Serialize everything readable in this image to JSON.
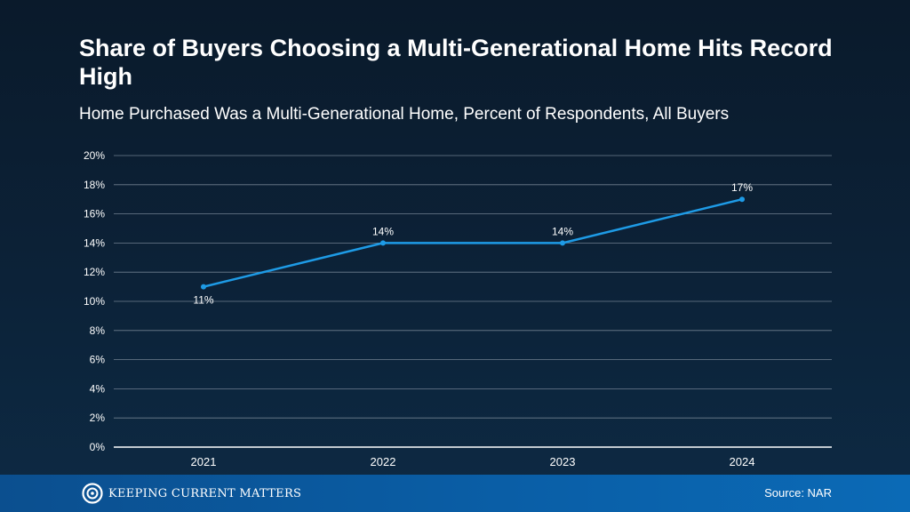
{
  "header": {
    "title": "Share of Buyers Choosing a Multi-Generational Home Hits Record High",
    "subtitle": "Home Purchased Was a Multi-Generational Home, Percent of Respondents, All Buyers"
  },
  "chart_data": {
    "type": "line",
    "title": "Share of Buyers Choosing a Multi-Generational Home Hits Record High",
    "subtitle": "Home Purchased Was a Multi-Generational Home, Percent of Respondents, All Buyers",
    "categories": [
      "2021",
      "2022",
      "2023",
      "2024"
    ],
    "series": [
      {
        "values": [
          11,
          14,
          14,
          17
        ],
        "labels": [
          "11%",
          "14%",
          "14%",
          "17%"
        ],
        "color": "#1e9be6"
      }
    ],
    "ylim": [
      0,
      20
    ],
    "yticks": [
      0,
      2,
      4,
      6,
      8,
      10,
      12,
      14,
      16,
      18,
      20
    ],
    "ytick_labels": [
      "0%",
      "2%",
      "4%",
      "6%",
      "8%",
      "10%",
      "12%",
      "14%",
      "16%",
      "18%",
      "20%"
    ],
    "xlabel": "",
    "ylabel": "",
    "grid": true,
    "legend": "none"
  },
  "footer": {
    "brand": "Keeping Current Matters",
    "logo_icon": "kcm-logo-icon",
    "source": "Source: NAR"
  },
  "colors": {
    "background": "#0c2238",
    "line": "#1e9be6",
    "gridline": "#6f7f8f",
    "footer": "#0a5ea6"
  }
}
